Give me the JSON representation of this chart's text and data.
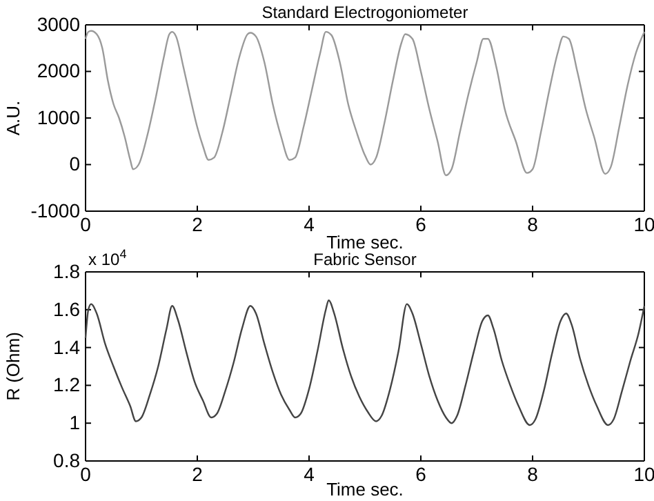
{
  "chart_data": [
    {
      "type": "line",
      "title": "Standard Electrogoniometer",
      "xlabel": "Time sec.",
      "ylabel": "A.U.",
      "xlim": [
        0,
        10
      ],
      "xticks": [
        0,
        2,
        4,
        6,
        8,
        10
      ],
      "ylim": [
        -1000,
        3000
      ],
      "yticks": [
        -1000,
        0,
        1000,
        2000,
        3000
      ],
      "grid": false,
      "series": [
        {
          "color": "#9a9a9a",
          "x": [
            0,
            0.05,
            0.1,
            0.2,
            0.3,
            0.4,
            0.5,
            0.6,
            0.7,
            0.8,
            0.85,
            0.95,
            1.1,
            1.25,
            1.4,
            1.5,
            1.55,
            1.62,
            1.75,
            1.9,
            2.0,
            2.1,
            2.2,
            2.3,
            2.45,
            2.6,
            2.75,
            2.9,
            2.95,
            3.05,
            3.2,
            3.35,
            3.5,
            3.65,
            3.75,
            3.9,
            4.05,
            4.2,
            4.3,
            4.4,
            4.55,
            4.7,
            4.85,
            5.0,
            5.1,
            5.2,
            5.35,
            5.5,
            5.65,
            5.72,
            5.85,
            6.0,
            6.15,
            6.3,
            6.45,
            6.55,
            6.7,
            6.85,
            7.0,
            7.12,
            7.2,
            7.35,
            7.5,
            7.7,
            7.9,
            8.0,
            8.15,
            8.3,
            8.45,
            8.55,
            8.65,
            8.8,
            8.95,
            9.1,
            9.3,
            9.4,
            9.55,
            9.7,
            9.85,
            10
          ],
          "values": [
            2700,
            2850,
            2870,
            2800,
            2500,
            1800,
            1300,
            1000,
            600,
            100,
            -100,
            0,
            600,
            1400,
            2300,
            2800,
            2850,
            2750,
            2100,
            1300,
            800,
            400,
            100,
            150,
            700,
            1500,
            2300,
            2800,
            2830,
            2750,
            2200,
            1300,
            600,
            100,
            150,
            800,
            1600,
            2400,
            2850,
            2780,
            2200,
            1300,
            700,
            200,
            0,
            150,
            900,
            1800,
            2600,
            2800,
            2700,
            2000,
            1200,
            500,
            -230,
            -100,
            700,
            1500,
            2200,
            2700,
            2700,
            2100,
            1200,
            500,
            -180,
            -100,
            700,
            1600,
            2400,
            2750,
            2700,
            2000,
            1200,
            600,
            -200,
            -50,
            800,
            1700,
            2400,
            2850
          ]
        }
      ]
    },
    {
      "type": "line",
      "title": "Fabric Sensor",
      "xlabel": "Time sec.",
      "ylabel": "R (Ohm)",
      "annotations": [
        "x 10$^{4}$"
      ],
      "xlim": [
        0,
        10
      ],
      "xticks": [
        0,
        2,
        4,
        6,
        8,
        10
      ],
      "ylim": [
        0.8,
        1.8
      ],
      "yticks": [
        0.8,
        1,
        1.2,
        1.4,
        1.6,
        1.8
      ],
      "grid": false,
      "series": [
        {
          "color": "#444444",
          "x": [
            0,
            0.05,
            0.1,
            0.2,
            0.35,
            0.5,
            0.65,
            0.8,
            0.9,
            1.0,
            1.15,
            1.3,
            1.45,
            1.55,
            1.65,
            1.8,
            1.95,
            2.1,
            2.25,
            2.35,
            2.5,
            2.65,
            2.8,
            2.95,
            3.05,
            3.2,
            3.35,
            3.5,
            3.65,
            3.75,
            3.85,
            4.0,
            4.15,
            4.3,
            4.35,
            4.45,
            4.6,
            4.75,
            4.9,
            5.05,
            5.2,
            5.3,
            5.45,
            5.6,
            5.75,
            5.85,
            6.0,
            6.15,
            6.3,
            6.45,
            6.55,
            6.65,
            6.8,
            6.95,
            7.1,
            7.2,
            7.3,
            7.45,
            7.6,
            7.75,
            7.95,
            8.05,
            8.2,
            8.35,
            8.5,
            8.6,
            8.7,
            8.85,
            9.0,
            9.15,
            9.35,
            9.45,
            9.6,
            9.75,
            9.9,
            10
          ],
          "values": [
            1.45,
            1.6,
            1.63,
            1.58,
            1.42,
            1.3,
            1.19,
            1.09,
            1.01,
            1.03,
            1.15,
            1.3,
            1.5,
            1.62,
            1.55,
            1.38,
            1.22,
            1.12,
            1.03,
            1.05,
            1.17,
            1.32,
            1.5,
            1.62,
            1.58,
            1.42,
            1.27,
            1.15,
            1.07,
            1.03,
            1.05,
            1.18,
            1.38,
            1.6,
            1.65,
            1.58,
            1.4,
            1.25,
            1.14,
            1.06,
            1.01,
            1.04,
            1.18,
            1.38,
            1.63,
            1.58,
            1.42,
            1.25,
            1.12,
            1.03,
            1.0,
            1.04,
            1.2,
            1.38,
            1.54,
            1.57,
            1.5,
            1.33,
            1.2,
            1.09,
            0.99,
            1.02,
            1.17,
            1.37,
            1.54,
            1.58,
            1.52,
            1.34,
            1.2,
            1.09,
            0.99,
            1.02,
            1.17,
            1.33,
            1.48,
            1.62
          ]
        }
      ]
    }
  ]
}
